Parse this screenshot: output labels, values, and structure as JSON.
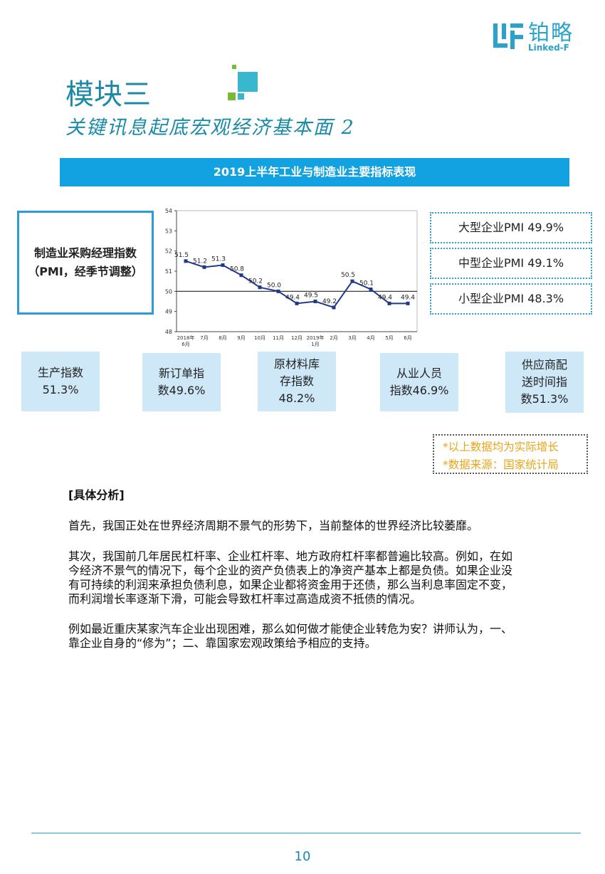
{
  "logo": {
    "mark_icon": "linked-f-logo-icon",
    "cn": "铂略",
    "en": "Linked-F"
  },
  "module_title": "模块三",
  "subtitle": "关键讯息起底宏观经济基本面 2",
  "banner": "2019上半年工业与制造业主要指标表现",
  "pmi_box": {
    "line1": "制造业采购经理指数",
    "line2": "（PMI，经季节调整）"
  },
  "chart_data": {
    "type": "line",
    "categories": [
      "2018年6月",
      "7月",
      "8月",
      "9月",
      "10月",
      "11月",
      "12月",
      "2019年1月",
      "2月",
      "3月",
      "4月",
      "5月",
      "6月"
    ],
    "x_labels": [
      [
        "2018年",
        "6月"
      ],
      [
        "7月"
      ],
      [
        "8月"
      ],
      [
        "9月"
      ],
      [
        "10月"
      ],
      [
        "11月"
      ],
      [
        "12月"
      ],
      [
        "2019年",
        "1月"
      ],
      [
        "2月"
      ],
      [
        "3月"
      ],
      [
        "4月"
      ],
      [
        "5月"
      ],
      [
        "6月"
      ]
    ],
    "values": [
      51.5,
      51.2,
      51.3,
      50.8,
      50.2,
      50.0,
      49.4,
      49.5,
      49.2,
      50.5,
      50.1,
      49.4,
      49.4
    ],
    "data_labels": [
      "51.5",
      "51.2",
      "51.3",
      "50.8",
      "50.2",
      "50.0",
      "49.4",
      "49.5",
      "49.2",
      "50.5",
      "50.1",
      "49.4",
      "49.4"
    ],
    "ylim": [
      48,
      54
    ],
    "yticks": [
      48,
      49,
      50,
      51,
      52,
      53,
      54
    ],
    "reference_line": 50,
    "color": "#1f3a8a"
  },
  "size_pmi": [
    "大型企业PMI 49.9%",
    "中型企业PMI 49.1%",
    "小型企业PMI 48.3%"
  ],
  "indicators": [
    {
      "lines": [
        "生产指数",
        "51.3%"
      ]
    },
    {
      "lines": [
        "新订单指",
        "数49.6%"
      ]
    },
    {
      "lines": [
        "原材料库",
        "存指数",
        "48.2%"
      ]
    },
    {
      "lines": [
        "从业人员",
        "指数46.9%"
      ]
    },
    {
      "lines": [
        "供应商配",
        "送时间指",
        "数51.3%"
      ]
    }
  ],
  "note": {
    "line1": "*以上数据均为实际增长",
    "line2": "*数据来源：国家统计局"
  },
  "analysis": {
    "heading": "[具体分析]",
    "p1": "首先，我国正处在世界经济周期不景气的形势下，当前整体的世界经济比较萎靡。",
    "p2": [
      "其次，我国前几年居民杠杆率、企业杠杆率、地方政府杠杆率都普遍比较高。例如，在如",
      "今经济不景气的情况下，每个企业的资产负债表上的净资产基本上都是负债。如果企业没",
      "有可持续的利润来承担负债利息，如果企业都将资金用于还债，那么当利息率固定不变，",
      "而利润增长率逐渐下滑，可能会导致杠杆率过高造成资不抵债的情况。"
    ],
    "p3": [
      "例如最近重庆某家汽车企业出现困难，那么如何做才能使企业转危为安？讲师认为，一、",
      "靠企业自身的“修为”；二、靠国家宏观政策给予相应的支持。"
    ]
  },
  "page_number": "10"
}
